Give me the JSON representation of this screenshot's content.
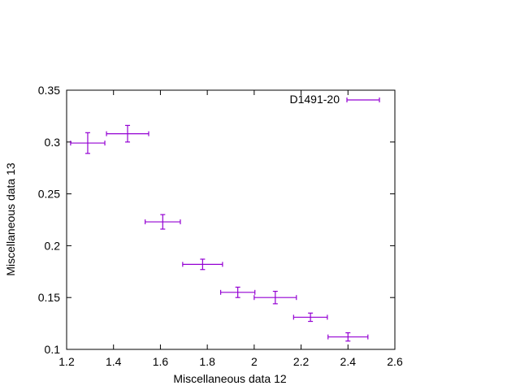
{
  "chart_data": {
    "type": "scatter",
    "title": "",
    "xlabel": "Miscellaneous data 12",
    "ylabel": "Miscellaneous data 13",
    "xlim": [
      1.2,
      2.6
    ],
    "ylim": [
      0.1,
      0.35
    ],
    "xticks": [
      1.2,
      1.4,
      1.6,
      1.8,
      2.0,
      2.2,
      2.4,
      2.6
    ],
    "xtick_labels": [
      "1.2",
      "1.4",
      "1.6",
      "1.8",
      "2",
      "2.2",
      "2.4",
      "2.6"
    ],
    "yticks": [
      0.1,
      0.15,
      0.2,
      0.25,
      0.3,
      0.35
    ],
    "ytick_labels": [
      "0.1",
      "0.15",
      "0.2",
      "0.25",
      "0.3",
      "0.35"
    ],
    "grid": false,
    "legend_position": "top-right",
    "series": [
      {
        "name": "D1491-20",
        "color": "#9400d3",
        "points": [
          {
            "x": 1.29,
            "xerr": 0.073,
            "y": 0.299,
            "yerr": 0.01
          },
          {
            "x": 1.46,
            "xerr": 0.09,
            "y": 0.308,
            "yerr": 0.008
          },
          {
            "x": 1.61,
            "xerr": 0.075,
            "y": 0.223,
            "yerr": 0.007
          },
          {
            "x": 1.78,
            "xerr": 0.085,
            "y": 0.182,
            "yerr": 0.005
          },
          {
            "x": 1.93,
            "xerr": 0.073,
            "y": 0.155,
            "yerr": 0.005
          },
          {
            "x": 2.09,
            "xerr": 0.09,
            "y": 0.15,
            "yerr": 0.006
          },
          {
            "x": 2.24,
            "xerr": 0.072,
            "y": 0.131,
            "yerr": 0.004
          },
          {
            "x": 2.4,
            "xerr": 0.085,
            "y": 0.112,
            "yerr": 0.004
          }
        ]
      }
    ]
  }
}
